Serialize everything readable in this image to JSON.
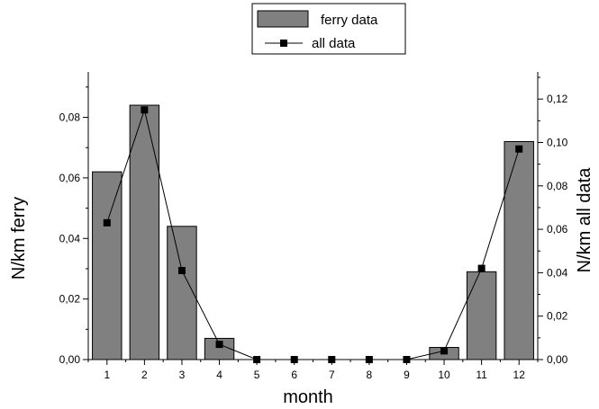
{
  "chart_data": {
    "type": "bar",
    "xlabel": "month",
    "ylabel_left": "N/km ferry",
    "ylabel_right": "N/km all data",
    "categories": [
      "1",
      "2",
      "3",
      "4",
      "5",
      "6",
      "7",
      "8",
      "9",
      "10",
      "11",
      "12"
    ],
    "ylim_left": [
      0,
      0.095
    ],
    "ylim_right": [
      0,
      0.1325
    ],
    "yticks_left": [
      0,
      0.02,
      0.04,
      0.06,
      0.08
    ],
    "yticks_left_labels": [
      "0,00",
      "0,02",
      "0,04",
      "0,06",
      "0,08"
    ],
    "yticks_right": [
      0,
      0.02,
      0.04,
      0.06,
      0.08,
      0.1,
      0.12
    ],
    "yticks_right_labels": [
      "0,00",
      "0,02",
      "0,04",
      "0,06",
      "0,08",
      "0,10",
      "0,12"
    ],
    "legend_position": "top-center",
    "grid": false,
    "series": [
      {
        "name": "ferry data",
        "type": "bar",
        "axis": "left",
        "color": "#808080",
        "values": [
          0.062,
          0.084,
          0.044,
          0.007,
          0,
          0,
          0,
          0,
          0,
          0.004,
          0.029,
          0.072
        ]
      },
      {
        "name": "all data",
        "type": "line",
        "axis": "right",
        "marker": "square",
        "color": "#000000",
        "values": [
          0.063,
          0.115,
          0.041,
          0.007,
          0,
          0,
          0,
          0,
          0,
          0.004,
          0.042,
          0.097
        ]
      }
    ]
  }
}
